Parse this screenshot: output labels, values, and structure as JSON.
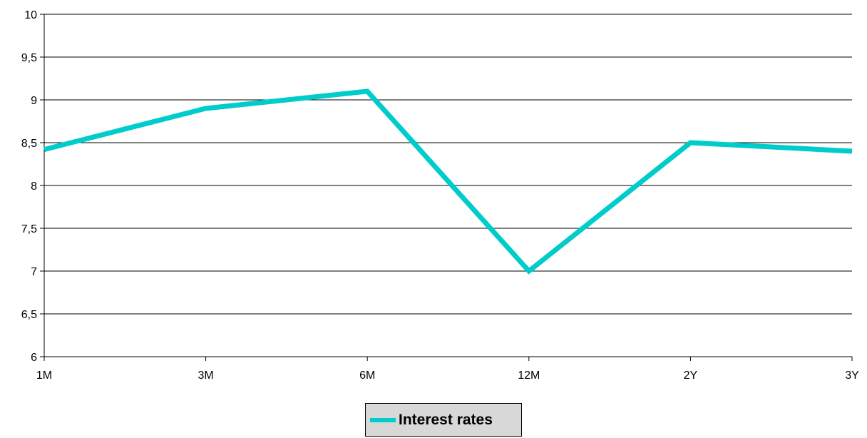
{
  "chart_data": {
    "type": "line",
    "title": "",
    "xlabel": "",
    "ylabel": "",
    "categories": [
      "1M",
      "3M",
      "6M",
      "12M",
      "2Y",
      "3Y"
    ],
    "ylim": [
      6,
      10
    ],
    "yticks": [
      "6",
      "6,5",
      "7",
      "7,5",
      "8",
      "8,5",
      "9",
      "9,5",
      "10"
    ],
    "grid": true,
    "legend_position": "bottom",
    "series": [
      {
        "name": "Interest rates",
        "color": "#00CCCC",
        "values": [
          8.42,
          8.9,
          9.1,
          7.0,
          8.5,
          8.4
        ]
      }
    ]
  }
}
